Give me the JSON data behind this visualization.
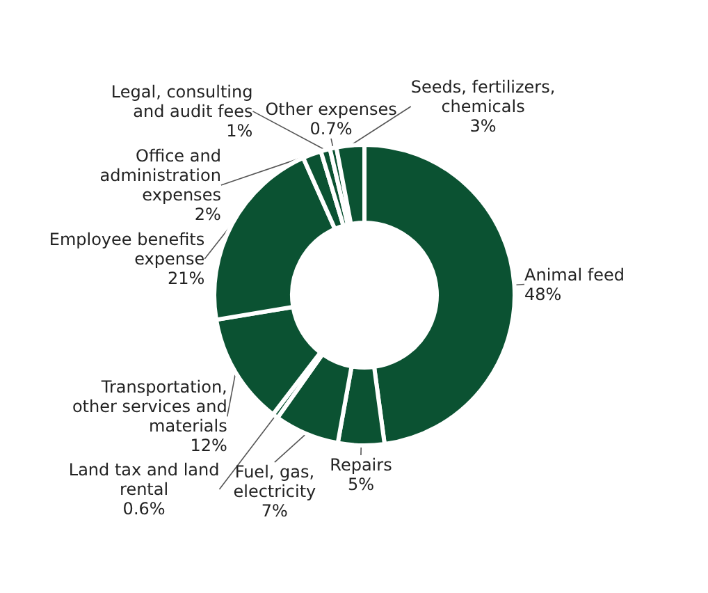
{
  "chart_data": {
    "type": "donut",
    "categories": [
      "Animal feed",
      "Repairs",
      "Fuel, gas, electricity",
      "Land tax and land rental",
      "Transportation, other services and materials",
      "Employee benefits expense",
      "Office and administration expenses",
      "Legal, consulting and audit fees",
      "Other expenses",
      "Seeds, fertilizers, chemicals"
    ],
    "values": [
      48,
      5,
      7,
      0.6,
      12,
      21,
      2,
      1,
      0.7,
      3
    ],
    "value_labels": [
      "48%",
      "5%",
      "7%",
      "0.6%",
      "12%",
      "21%",
      "2%",
      "1%",
      "0.7%",
      "3%"
    ],
    "colors": [
      "#0b5232",
      "#0b5232",
      "#0b5232",
      "#0b5232",
      "#0b5232",
      "#0b5232",
      "#0b5232",
      "#0b5232",
      "#0b5232",
      "#0b5232"
    ],
    "legend": false
  }
}
